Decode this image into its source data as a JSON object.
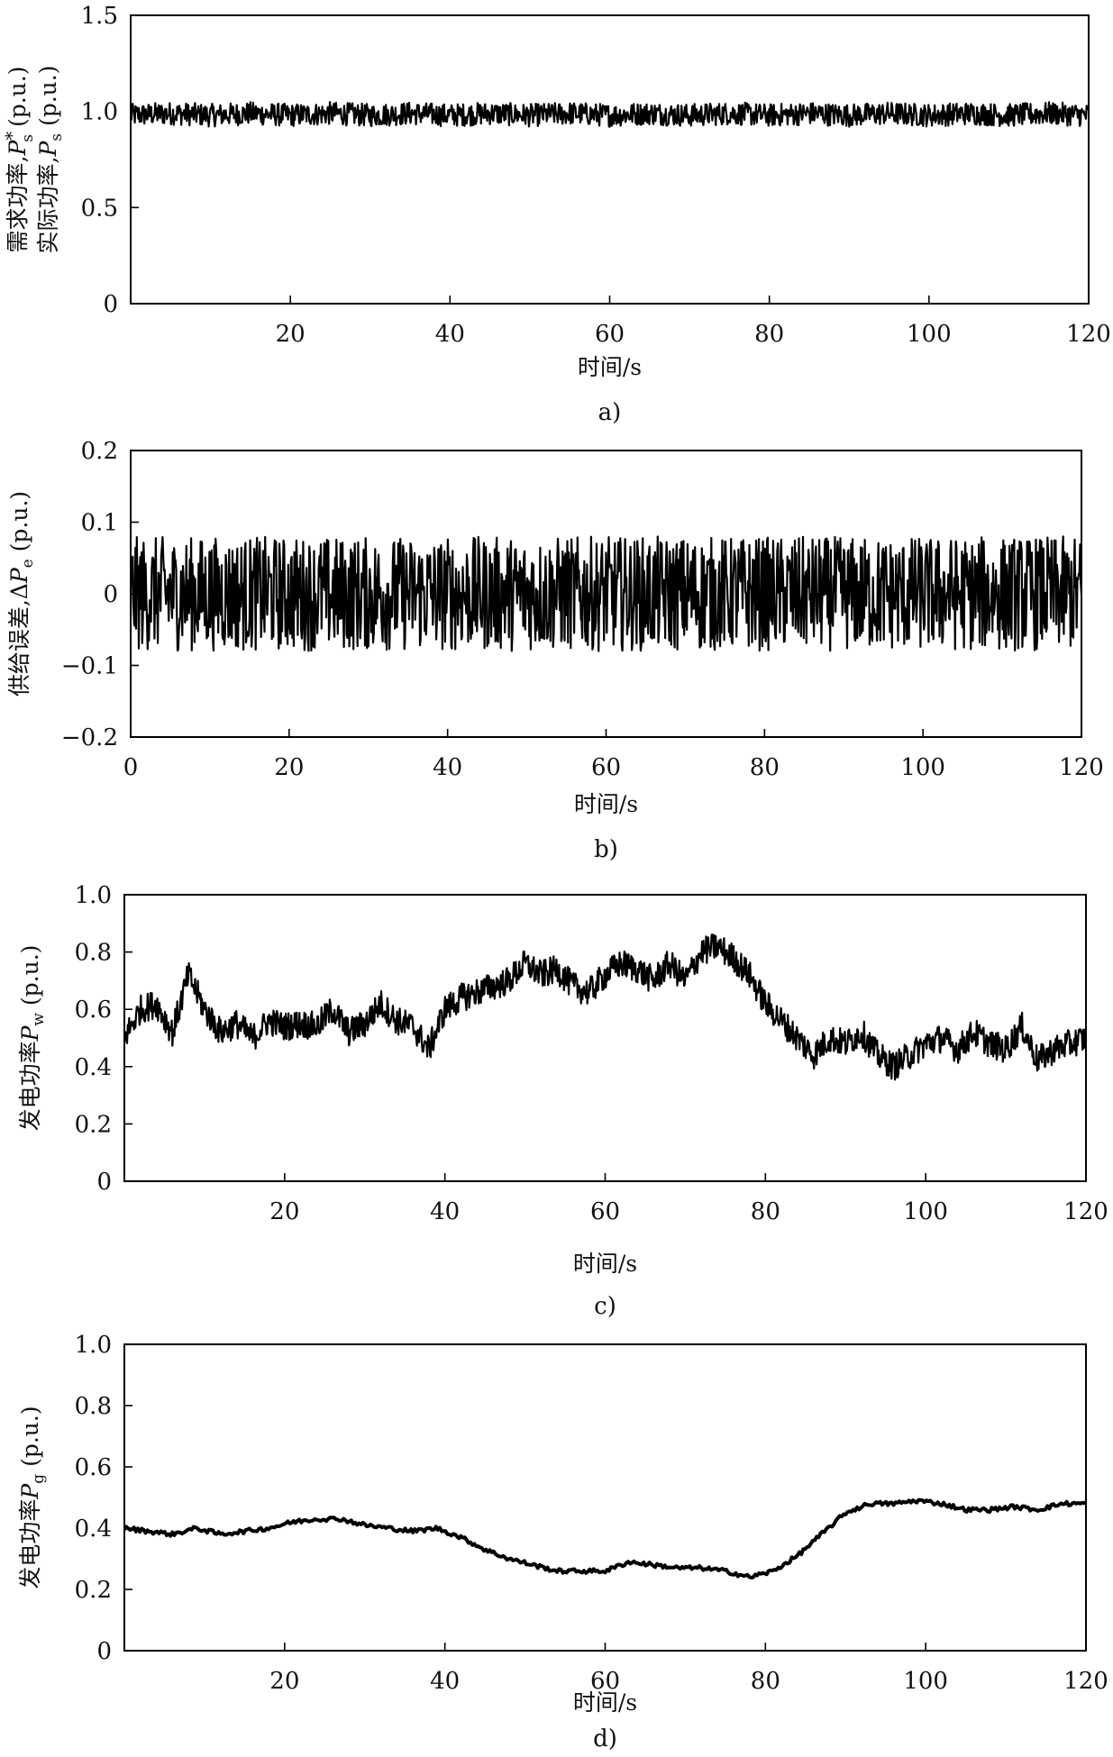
{
  "chart_data": [
    {
      "id": "a",
      "type": "line",
      "caption": "a)",
      "xlabel": "时间/s",
      "ylabel_lines": [
        {
          "main": "需求功率,",
          "var": "P",
          "sup": "*",
          "sub": "s",
          "unit": " (p.u.)"
        },
        {
          "main": "实际功率,",
          "var": "P",
          "sup": "",
          "sub": "s",
          "unit": " (p.u.)"
        }
      ],
      "xlim": [
        0,
        120
      ],
      "ylim": [
        0,
        1.5
      ],
      "xticks": [
        20,
        40,
        60,
        80,
        100,
        120
      ],
      "xtick_labels": [
        "20",
        "40",
        "60",
        "80",
        "100",
        "120"
      ],
      "yticks": [
        0,
        0.5,
        1.0,
        1.5
      ],
      "ytick_labels": [
        "0",
        "0.5",
        "1.0",
        "1.5"
      ],
      "grid": false,
      "series": [
        {
          "x": [
            0,
            5,
            10,
            15,
            20,
            25,
            30,
            35,
            40,
            45,
            50,
            55,
            60,
            65,
            70,
            75,
            80,
            85,
            90,
            95,
            100,
            105,
            110,
            115,
            120
          ],
          "y": [
            0.98,
            0.99,
            0.98,
            0.99,
            0.98,
            0.99,
            0.98,
            0.99,
            0.98,
            0.99,
            0.98,
            0.99,
            0.98,
            0.99,
            0.98,
            0.99,
            0.98,
            0.99,
            0.98,
            0.99,
            0.98,
            0.99,
            0.98,
            0.99,
            0.98
          ],
          "noise_amplitude": 0.06
        }
      ]
    },
    {
      "id": "b",
      "type": "line",
      "caption": "b)",
      "xlabel": "时间/s",
      "ylabel_lines": [
        {
          "main": "供给误差,Δ",
          "var": "P",
          "sup": "",
          "sub": "e",
          "unit": " (p.u.)"
        }
      ],
      "xlim": [
        0,
        120
      ],
      "ylim": [
        -0.2,
        0.2
      ],
      "xticks": [
        0,
        20,
        40,
        60,
        80,
        100,
        120
      ],
      "xtick_labels": [
        "0",
        "20",
        "40",
        "60",
        "80",
        "100",
        "120"
      ],
      "yticks": [
        -0.2,
        -0.1,
        0,
        0.1,
        0.2
      ],
      "ytick_labels": [
        "−0.2",
        "−0.1",
        "0",
        "0.1",
        "0.2"
      ],
      "grid": false,
      "series": [
        {
          "x": [
            0,
            5,
            10,
            15,
            20,
            25,
            30,
            35,
            40,
            45,
            50,
            55,
            60,
            65,
            70,
            75,
            80,
            85,
            90,
            95,
            100,
            105,
            110,
            115,
            120
          ],
          "y": [
            0,
            0,
            0,
            0,
            0,
            0,
            0,
            0,
            0,
            0,
            0,
            0,
            0,
            0,
            0,
            0,
            0,
            0,
            0,
            0,
            0,
            0,
            0,
            0,
            0
          ],
          "noise_amplitude": 0.08
        }
      ]
    },
    {
      "id": "c",
      "type": "line",
      "caption": "c)",
      "xlabel": "时间/s",
      "ylabel_lines": [
        {
          "main": "发电功率",
          "var": "P",
          "sup": "",
          "sub": "w",
          "unit": " (p.u.)"
        }
      ],
      "xlim": [
        0,
        120
      ],
      "ylim": [
        0,
        1.0
      ],
      "xticks": [
        20,
        40,
        60,
        80,
        100,
        120
      ],
      "xtick_labels": [
        "20",
        "40",
        "60",
        "80",
        "100",
        "120"
      ],
      "yticks": [
        0,
        0.2,
        0.4,
        0.6,
        0.8,
        1.0
      ],
      "ytick_labels": [
        "0",
        "0.2",
        "0.4",
        "0.6",
        "0.8",
        "1.0"
      ],
      "grid": false,
      "series": [
        {
          "x": [
            0,
            2,
            4,
            6,
            8,
            10,
            12,
            14,
            16,
            18,
            20,
            22,
            24,
            26,
            28,
            30,
            32,
            34,
            36,
            38,
            40,
            42,
            44,
            46,
            48,
            50,
            52,
            54,
            56,
            58,
            60,
            62,
            64,
            66,
            68,
            70,
            72,
            74,
            76,
            78,
            80,
            82,
            84,
            86,
            88,
            90,
            92,
            94,
            96,
            98,
            100,
            102,
            104,
            106,
            108,
            110,
            112,
            114,
            116,
            118,
            120
          ],
          "y": [
            0.5,
            0.6,
            0.62,
            0.52,
            0.72,
            0.6,
            0.52,
            0.55,
            0.5,
            0.56,
            0.54,
            0.55,
            0.54,
            0.6,
            0.52,
            0.55,
            0.62,
            0.56,
            0.54,
            0.46,
            0.6,
            0.64,
            0.66,
            0.68,
            0.7,
            0.76,
            0.72,
            0.74,
            0.68,
            0.66,
            0.72,
            0.76,
            0.74,
            0.7,
            0.76,
            0.7,
            0.8,
            0.82,
            0.78,
            0.72,
            0.62,
            0.56,
            0.5,
            0.44,
            0.5,
            0.48,
            0.52,
            0.44,
            0.4,
            0.44,
            0.48,
            0.5,
            0.46,
            0.52,
            0.48,
            0.46,
            0.54,
            0.42,
            0.46,
            0.48,
            0.5
          ],
          "noise_amplitude": 0.05
        }
      ]
    },
    {
      "id": "d",
      "type": "line",
      "caption": "d)",
      "xlabel": "时间/s",
      "ylabel_lines": [
        {
          "main": "发电功率",
          "var": "P",
          "sup": "",
          "sub": "g",
          "unit": " (p.u.)"
        }
      ],
      "xlim": [
        0,
        120
      ],
      "ylim": [
        0,
        1.0
      ],
      "xticks": [
        20,
        40,
        60,
        80,
        100,
        120
      ],
      "xtick_labels": [
        "20",
        "40",
        "60",
        "80",
        "100",
        "120"
      ],
      "yticks": [
        0,
        0.2,
        0.4,
        0.6,
        0.8,
        1.0
      ],
      "ytick_labels": [
        "0",
        "0.2",
        "0.4",
        "0.6",
        "0.8",
        "1.0"
      ],
      "grid": false,
      "series": [
        {
          "x": [
            0,
            3,
            6,
            9,
            12,
            15,
            18,
            21,
            24,
            27,
            30,
            33,
            36,
            39,
            42,
            45,
            48,
            51,
            54,
            57,
            60,
            63,
            66,
            69,
            72,
            75,
            78,
            81,
            84,
            87,
            90,
            93,
            96,
            99,
            102,
            105,
            108,
            111,
            114,
            117,
            120
          ],
          "y": [
            0.4,
            0.39,
            0.38,
            0.4,
            0.38,
            0.39,
            0.4,
            0.42,
            0.43,
            0.43,
            0.41,
            0.4,
            0.39,
            0.4,
            0.37,
            0.33,
            0.3,
            0.28,
            0.26,
            0.26,
            0.26,
            0.29,
            0.28,
            0.27,
            0.27,
            0.26,
            0.24,
            0.26,
            0.31,
            0.38,
            0.45,
            0.48,
            0.48,
            0.49,
            0.48,
            0.46,
            0.46,
            0.47,
            0.46,
            0.48,
            0.48
          ],
          "noise_amplitude": 0.007
        }
      ]
    }
  ]
}
